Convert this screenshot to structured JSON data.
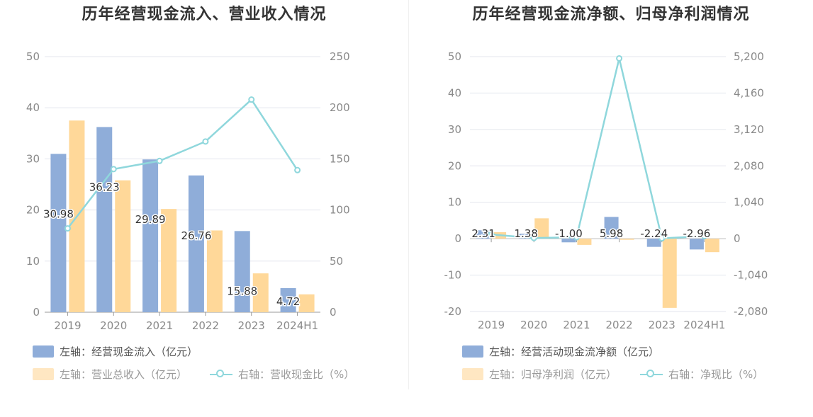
{
  "chart_data": [
    {
      "type": "bar",
      "title": "历年经营现金流入、营业收入情况",
      "categories": [
        "2019",
        "2020",
        "2021",
        "2022",
        "2023",
        "2024H1"
      ],
      "left_axis": {
        "ylim": [
          0,
          50
        ],
        "ticks": [
          "0",
          "10",
          "20",
          "30",
          "40",
          "50"
        ]
      },
      "right_axis": {
        "ylim": [
          0,
          250
        ],
        "ticks": [
          "0",
          "50",
          "100",
          "150",
          "200",
          "250"
        ]
      },
      "series": [
        {
          "name": "左轴：经营现金流入（亿元）",
          "kind": "bar",
          "axis": "left",
          "color": "#8fadd9",
          "values": [
            30.98,
            36.23,
            29.89,
            26.76,
            15.88,
            4.72
          ],
          "labels": [
            "30.98",
            "36.23",
            "29.89",
            "26.76",
            "15.88",
            "4.72"
          ]
        },
        {
          "name": "左轴：营业总收入（亿元）",
          "kind": "bar",
          "axis": "left",
          "color": "#ffd899",
          "values": [
            37.5,
            25.8,
            20.2,
            16.0,
            7.6,
            3.5
          ]
        },
        {
          "name": "右轴：营收现金比（%）",
          "kind": "line",
          "axis": "right",
          "color": "#8fd7dc",
          "values": [
            82,
            140,
            148,
            167,
            208,
            139
          ]
        }
      ],
      "grid": true,
      "legend_position": "bottom-left"
    },
    {
      "type": "bar",
      "title": "历年经营现金流净额、归母净利润情况",
      "categories": [
        "2019",
        "2020",
        "2021",
        "2022",
        "2023",
        "2024H1"
      ],
      "left_axis": {
        "ylim": [
          -20,
          50
        ],
        "ticks": [
          "-20",
          "-10",
          "0",
          "10",
          "20",
          "30",
          "40",
          "50"
        ]
      },
      "right_axis": {
        "ylim": [
          -2080,
          5200
        ],
        "ticks": [
          "-2,080",
          "-1,040",
          "0",
          "1,040",
          "2,080",
          "3,120",
          "4,160",
          "5,200"
        ]
      },
      "series": [
        {
          "name": "左轴：经营活动现金流净额（亿元）",
          "kind": "bar",
          "axis": "left",
          "color": "#8fadd9",
          "values": [
            2.31,
            1.38,
            -1.0,
            5.98,
            -2.24,
            -2.96
          ],
          "labels": [
            "2.31",
            "1.38",
            "-1.00",
            "5.98",
            "-2.24",
            "-2.96"
          ]
        },
        {
          "name": "左轴：归母净利润（亿元）",
          "kind": "bar",
          "axis": "left",
          "color": "#ffd899",
          "values": [
            1.8,
            5.6,
            -1.7,
            -0.3,
            -19.0,
            -3.7
          ]
        },
        {
          "name": "右轴：净现比（%）",
          "kind": "line",
          "axis": "right",
          "color": "#8fd7dc",
          "values": [
            120,
            20,
            40,
            5150,
            10,
            70
          ]
        }
      ],
      "grid": true,
      "legend_position": "bottom-left"
    }
  ]
}
